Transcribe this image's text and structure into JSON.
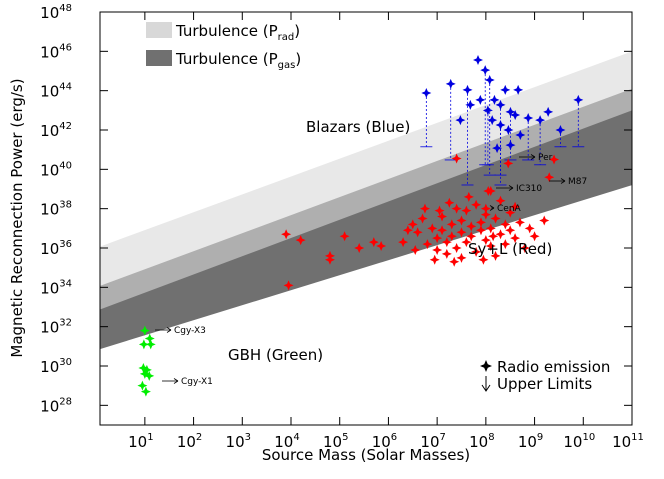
{
  "chart_data": {
    "type": "scatter",
    "xlabel": "Source Mass (Solar Masses)",
    "ylabel": "Magnetic Reconnection Power (erg/s)",
    "xscale": "log",
    "yscale": "log",
    "xlim": [
      1.2,
      100000000000.0
    ],
    "ylim": [
      1e+27,
      1e+48
    ],
    "xticks": [
      {
        "value": 10,
        "label": "10^1"
      },
      {
        "value": 100,
        "label": "10^2"
      },
      {
        "value": 1000,
        "label": "10^3"
      },
      {
        "value": 10000,
        "label": "10^4"
      },
      {
        "value": 100000,
        "label": "10^5"
      },
      {
        "value": 1000000,
        "label": "10^6"
      },
      {
        "value": 10000000,
        "label": "10^7"
      },
      {
        "value": 100000000,
        "label": "10^8"
      },
      {
        "value": 1000000000,
        "label": "10^9"
      },
      {
        "value": 10000000000,
        "label": "10^10"
      },
      {
        "value": 100000000000,
        "label": "10^11"
      }
    ],
    "yticks": [
      {
        "value": 1e+28,
        "label": "10^28"
      },
      {
        "value": 1e+30,
        "label": "10^30"
      },
      {
        "value": 1e+32,
        "label": "10^32"
      },
      {
        "value": 1e+34,
        "label": "10^34"
      },
      {
        "value": 1e+36,
        "label": "10^36"
      },
      {
        "value": 1e+38,
        "label": "10^38"
      },
      {
        "value": 1e+40,
        "label": "10^40"
      },
      {
        "value": 1e+42,
        "label": "10^42"
      },
      {
        "value": 1e+44,
        "label": "10^44"
      },
      {
        "value": 1e+46,
        "label": "10^46"
      },
      {
        "value": 1e+48,
        "label": "10^48"
      }
    ],
    "bands": [
      {
        "name": "Turbulence (P_{gas})",
        "color": "#707070",
        "x": [
          1,
          100000000000.0
        ],
        "upper": [
          1e+34,
          1.26e+44
        ],
        "lower": [
          6.31e+30,
          1.58e+39
        ]
      },
      {
        "name": "Turbulence (P_{rad})",
        "color": "#d8d8d8",
        "x": [
          1,
          100000000000.0
        ],
        "upper": [
          1e+36,
          1e+46
        ],
        "lower": [
          6.31e+32,
          1e+43
        ]
      }
    ],
    "series": [
      {
        "name": "Blazars (Blue)",
        "color": "#0000e0",
        "x": [
          6000000.0,
          19000000.0,
          42000000.0,
          69000000.0,
          97000000.0,
          120000000.0,
          150000000.0,
          200000000.0,
          250000000.0,
          320000000.0,
          400000000.0,
          77000000.0,
          110000000.0,
          135000000.0,
          48000000.0,
          30000000.0,
          200000000.0,
          290000000.0,
          510000000.0,
          740000000.0,
          1300000000.0,
          460000000.0,
          1900000000.0,
          7900000000.0,
          170000000.0,
          320000000.0,
          3400000000.0
        ],
        "values": [
          7.6e+43,
          2.2e+44,
          1.1e+44,
          3.6e+45,
          1.1e+45,
          3.5e+44,
          3.4e+43,
          1.9e+43,
          1.1e+44,
          8.3e+42,
          5.8e+42,
          3.4e+43,
          1e+43,
          3.2e+42,
          1.9e+43,
          3.2e+42,
          1.8e+42,
          1e+42,
          5.6e+41,
          4.1e+42,
          3.2e+42,
          1.1e+44,
          8.3e+42,
          3.4e+43,
          1.2e+41,
          1.7e+41,
          1e+42
        ],
        "lower": [
          1.4e+41,
          3e+40,
          1.6e+39,
          null,
          1.7e+40,
          5.1e+39,
          null,
          1.6e+39,
          null,
          3e+40,
          null,
          null,
          1.7e+40,
          null,
          null,
          null,
          5.1e+39,
          null,
          null,
          3e+40,
          1.7e+40,
          null,
          null,
          1.4e+41,
          null,
          null,
          1.4e+41
        ]
      },
      {
        "name": "Sy+L (Red)",
        "color": "#ff0000",
        "x": [
          7940.0,
          15800.0,
          126000.0,
          63100.0,
          63100.0,
          8910.0,
          251000.0,
          501000.0,
          708000.0,
          2510000.0,
          3160000.0,
          2000000.0,
          288000000.0,
          126000000.0,
          2000000000.0,
          100000000.0,
          25100000.0,
          3980000.0,
          5010000.0,
          6310000.0,
          7940000.0,
          10000000.0,
          10000000.0,
          12600000.0,
          12600000.0,
          15800000.0,
          15800000.0,
          20000000.0,
          20000000.0,
          25100000.0,
          25100000.0,
          31600000.0,
          31600000.0,
          31600000.0,
          39800000.0,
          39800000.0,
          50100000.0,
          50100000.0,
          63100000.0,
          63100000.0,
          79400000.0,
          79400000.0,
          100000000.0,
          100000000.0,
          126000000.0,
          126000000.0,
          158000000.0,
          158000000.0,
          200000000.0,
          200000000.0,
          251000000.0,
          251000000.0,
          316000000.0,
          316000000.0,
          398000000.0,
          501000000.0,
          631000000.0,
          794000000.0,
          1000000000.0,
          1580000000.0,
          17800000.0,
          11200000.0,
          5620000.0,
          112000000.0,
          44700000.0,
          398000000.0,
          22400000.0,
          89100000.0,
          141000000.0,
          3550000.0,
          8910000.0,
          2510000000.0
        ],
        "values": [
          5.01e+36,
          2.51e+36,
          3.98e+36,
          3.98e+35,
          2.51e+35,
          1.26e+34,
          1e+36,
          2e+36,
          1.26e+36,
          7.94e+36,
          1.58e+37,
          2e+36,
          2e+40,
          7.94e+38,
          3.98e+39,
          1e+38,
          3.55e+40,
          6.31e+36,
          3.16e+37,
          1.58e+36,
          1e+37,
          3.16e+36,
          7.94e+35,
          3.98e+37,
          7.94e+36,
          2e+36,
          5.01e+35,
          1.58e+37,
          3.98e+36,
          1e+38,
          1e+36,
          2.51e+37,
          6.31e+36,
          3.16e+35,
          7.94e+37,
          2e+36,
          1.26e+37,
          3.98e+36,
          1.58e+38,
          6.31e+35,
          2e+37,
          7.94e+36,
          2.51e+36,
          5.01e+37,
          1.26e+36,
          1e+37,
          3.16e+37,
          3.98e+35,
          5.01e+36,
          2.51e+38,
          1.58e+37,
          1.58e+36,
          7.94e+36,
          6.31e+37,
          3.16e+36,
          2e+37,
          1e+36,
          1e+37,
          3.98e+36,
          2.51e+37,
          2e+38,
          7.94e+37,
          1e+38,
          7.94e+38,
          3.98e+38,
          1.26e+38,
          2e+35,
          2.51e+35,
          3.98e+36,
          7.94e+35,
          2.51e+35,
          3.16e+40
        ]
      },
      {
        "name": "GBH (Green)",
        "color": "#00ee00",
        "x": [
          10,
          12.6,
          9.55,
          13.2,
          9.33,
          11.0,
          10,
          8.91,
          12.3,
          10.5
        ],
        "values": [
          6.31e+31,
          2.51e+31,
          1.26e+31,
          1.26e+31,
          7.94e+29,
          6.31e+29,
          3.98e+29,
          1e+29,
          3.16e+29,
          5.01e+28
        ]
      }
    ],
    "annotations": [
      "Cgy-X3",
      "Cgy-X1",
      "Per",
      "M87",
      "IC310",
      "CenA"
    ],
    "legend": [
      "Radio emission",
      "Upper Limits"
    ]
  }
}
